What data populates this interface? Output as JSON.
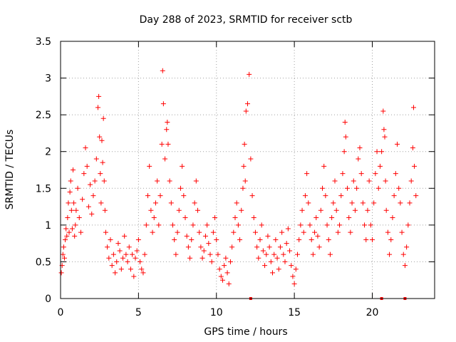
{
  "chart_data": {
    "type": "scatter",
    "title": "Day 288 of 2023, SRMTID for receiver sctb",
    "xlabel": "GPS time / hours",
    "ylabel": "SRMTID / TECUs",
    "xlim": [
      0,
      24
    ],
    "ylim": [
      0,
      3.5
    ],
    "x_ticks": [
      0,
      5,
      10,
      15,
      20
    ],
    "x_tick_labels": [
      "0",
      "5",
      "10",
      "15",
      "20"
    ],
    "y_ticks": [
      0,
      0.5,
      1,
      1.5,
      2,
      2.5,
      3,
      3.5
    ],
    "y_tick_labels": [
      "0",
      "0.5",
      "1",
      "1.5",
      "2",
      "2.5",
      "3",
      "3.5"
    ],
    "grid": true,
    "marker": "+",
    "color": "#ff0000",
    "series": [
      {
        "name": "SRMTID",
        "x": [
          0.05,
          0.1,
          0.15,
          0.2,
          0.25,
          0.3,
          0.35,
          0.4,
          0.45,
          0.5,
          0.55,
          0.6,
          0.65,
          0.7,
          0.75,
          0.8,
          0.85,
          0.9,
          0.95,
          1.0,
          1.1,
          1.2,
          1.3,
          1.4,
          1.5,
          1.6,
          1.7,
          1.8,
          1.9,
          2.0,
          2.1,
          2.2,
          2.3,
          2.4,
          2.45,
          2.5,
          2.55,
          2.6,
          2.65,
          2.7,
          2.75,
          2.8,
          2.85,
          2.9,
          3.0,
          3.1,
          3.2,
          3.3,
          3.4,
          3.5,
          3.6,
          3.7,
          3.8,
          3.9,
          4.0,
          4.1,
          4.2,
          4.3,
          4.4,
          4.5,
          4.6,
          4.7,
          4.8,
          4.9,
          5.0,
          5.1,
          5.2,
          5.3,
          5.4,
          5.5,
          5.6,
          5.7,
          5.8,
          5.9,
          6.0,
          6.1,
          6.2,
          6.3,
          6.4,
          6.5,
          6.55,
          6.6,
          6.7,
          6.8,
          6.85,
          6.9,
          7.0,
          7.1,
          7.2,
          7.3,
          7.4,
          7.5,
          7.6,
          7.7,
          7.8,
          7.9,
          8.0,
          8.1,
          8.2,
          8.3,
          8.4,
          8.5,
          8.6,
          8.7,
          8.8,
          8.9,
          9.0,
          9.1,
          9.2,
          9.3,
          9.4,
          9.5,
          9.6,
          9.7,
          9.8,
          9.9,
          10.0,
          10.1,
          10.2,
          10.3,
          10.4,
          10.5,
          10.6,
          10.7,
          10.8,
          10.9,
          11.0,
          11.1,
          11.2,
          11.3,
          11.4,
          11.5,
          11.6,
          11.7,
          11.75,
          11.8,
          11.85,
          11.9,
          12.0,
          12.1,
          12.2,
          12.3,
          12.4,
          12.5,
          12.6,
          12.7,
          12.8,
          12.9,
          13.0,
          13.1,
          13.2,
          13.3,
          13.4,
          13.5,
          13.6,
          13.7,
          13.8,
          13.9,
          14.0,
          14.1,
          14.2,
          14.3,
          14.4,
          14.5,
          14.6,
          14.7,
          14.8,
          14.9,
          15.0,
          15.1,
          15.2,
          15.3,
          15.4,
          15.5,
          15.6,
          15.7,
          15.8,
          15.9,
          16.0,
          16.1,
          16.2,
          16.3,
          16.4,
          16.5,
          16.6,
          16.7,
          16.8,
          16.9,
          17.0,
          17.1,
          17.2,
          17.3,
          17.4,
          17.5,
          17.6,
          17.7,
          17.8,
          17.9,
          18.0,
          18.1,
          18.2,
          18.25,
          18.3,
          18.4,
          18.5,
          18.6,
          18.7,
          18.8,
          18.9,
          19.0,
          19.1,
          19.2,
          19.3,
          19.4,
          19.5,
          19.6,
          19.7,
          19.8,
          19.9,
          20.0,
          20.1,
          20.2,
          20.3,
          20.4,
          20.5,
          20.6,
          20.7,
          20.75,
          20.8,
          20.85,
          20.9,
          21.0,
          21.1,
          21.2,
          21.3,
          21.4,
          21.5,
          21.6,
          21.7,
          21.8,
          21.9,
          22.0,
          22.1,
          22.2,
          22.3,
          22.4,
          22.5,
          22.6,
          22.65,
          22.7,
          22.8
        ],
        "y": [
          0.35,
          0.45,
          0.6,
          0.7,
          0.55,
          0.8,
          0.95,
          0.85,
          1.1,
          1.3,
          0.9,
          1.45,
          1.6,
          1.2,
          0.95,
          1.75,
          1.3,
          0.85,
          1.0,
          1.2,
          1.5,
          1.1,
          0.9,
          1.35,
          1.7,
          2.05,
          1.8,
          1.25,
          1.55,
          1.15,
          1.4,
          1.6,
          1.9,
          2.6,
          2.75,
          2.2,
          1.7,
          1.3,
          2.15,
          1.85,
          2.45,
          1.6,
          1.2,
          0.9,
          0.7,
          0.55,
          0.8,
          0.45,
          0.6,
          0.35,
          0.5,
          0.75,
          0.65,
          0.4,
          0.55,
          0.85,
          0.6,
          0.5,
          0.7,
          0.4,
          0.6,
          0.3,
          0.55,
          0.65,
          0.8,
          0.5,
          0.4,
          0.35,
          0.6,
          1.0,
          1.4,
          1.8,
          1.2,
          0.9,
          1.1,
          1.3,
          1.6,
          1.0,
          1.4,
          2.1,
          3.1,
          2.65,
          1.9,
          2.3,
          2.4,
          2.1,
          1.6,
          1.3,
          1.0,
          0.8,
          0.6,
          0.9,
          1.2,
          1.5,
          1.8,
          1.4,
          1.1,
          0.85,
          0.7,
          0.55,
          0.8,
          1.0,
          1.3,
          1.6,
          1.2,
          0.9,
          0.7,
          0.55,
          0.65,
          0.85,
          1.0,
          0.75,
          0.6,
          0.5,
          0.9,
          1.1,
          0.8,
          0.6,
          0.4,
          0.3,
          0.25,
          0.45,
          0.55,
          0.35,
          0.2,
          0.5,
          0.7,
          0.9,
          1.1,
          1.3,
          1.0,
          0.8,
          1.2,
          1.5,
          1.8,
          2.1,
          1.6,
          2.55,
          2.65,
          3.05,
          1.9,
          1.4,
          1.1,
          0.9,
          0.7,
          0.55,
          0.8,
          1.0,
          0.65,
          0.45,
          0.6,
          0.85,
          0.7,
          0.5,
          0.35,
          0.6,
          0.8,
          0.55,
          0.4,
          0.7,
          0.9,
          0.6,
          0.5,
          0.75,
          0.95,
          0.65,
          0.45,
          0.3,
          0.2,
          0.4,
          0.6,
          0.8,
          1.0,
          1.2,
          0.9,
          1.4,
          1.7,
          1.3,
          1.0,
          0.8,
          0.6,
          0.9,
          1.1,
          0.85,
          0.7,
          1.2,
          1.5,
          1.8,
          1.4,
          1.0,
          0.8,
          0.6,
          1.1,
          1.3,
          1.6,
          1.2,
          0.9,
          1.0,
          1.4,
          1.7,
          2.0,
          2.4,
          2.2,
          1.5,
          1.1,
          0.9,
          1.3,
          1.6,
          1.2,
          1.5,
          1.9,
          2.05,
          1.7,
          1.3,
          1.0,
          0.8,
          1.2,
          1.6,
          1.0,
          0.8,
          1.3,
          1.7,
          2.0,
          1.5,
          1.8,
          2.0,
          2.55,
          2.3,
          2.2,
          1.6,
          1.2,
          0.9,
          0.6,
          0.8,
          1.1,
          1.4,
          1.7,
          2.1,
          1.5,
          1.3,
          0.9,
          0.6,
          0.45,
          0.7,
          1.0,
          1.3,
          1.6,
          2.05,
          2.6,
          1.8,
          1.4
        ]
      }
    ],
    "data_gaps": [
      12.2,
      20.6,
      22.1
    ]
  }
}
